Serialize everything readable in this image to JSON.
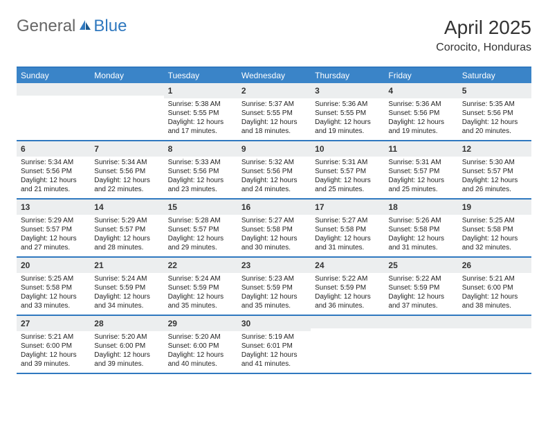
{
  "logo": {
    "general": "General",
    "blue": "Blue"
  },
  "title": "April 2025",
  "location": "Corocito, Honduras",
  "colors": {
    "accent": "#2f78bf",
    "header_bg": "#3a84c8",
    "daynum_bg": "#eceeef",
    "text": "#222222",
    "background": "#ffffff"
  },
  "daysOfWeek": [
    "Sunday",
    "Monday",
    "Tuesday",
    "Wednesday",
    "Thursday",
    "Friday",
    "Saturday"
  ],
  "layout": {
    "columns": 7,
    "rows": 5,
    "cell_font_size": 10,
    "dow_font_size": 12,
    "title_font_size": 28,
    "location_font_size": 16
  },
  "weeks": [
    [
      {
        "day": "",
        "sunrise": "",
        "sunset": "",
        "daylight": ""
      },
      {
        "day": "",
        "sunrise": "",
        "sunset": "",
        "daylight": ""
      },
      {
        "day": "1",
        "sunrise": "Sunrise: 5:38 AM",
        "sunset": "Sunset: 5:55 PM",
        "daylight": "Daylight: 12 hours and 17 minutes."
      },
      {
        "day": "2",
        "sunrise": "Sunrise: 5:37 AM",
        "sunset": "Sunset: 5:55 PM",
        "daylight": "Daylight: 12 hours and 18 minutes."
      },
      {
        "day": "3",
        "sunrise": "Sunrise: 5:36 AM",
        "sunset": "Sunset: 5:55 PM",
        "daylight": "Daylight: 12 hours and 19 minutes."
      },
      {
        "day": "4",
        "sunrise": "Sunrise: 5:36 AM",
        "sunset": "Sunset: 5:56 PM",
        "daylight": "Daylight: 12 hours and 19 minutes."
      },
      {
        "day": "5",
        "sunrise": "Sunrise: 5:35 AM",
        "sunset": "Sunset: 5:56 PM",
        "daylight": "Daylight: 12 hours and 20 minutes."
      }
    ],
    [
      {
        "day": "6",
        "sunrise": "Sunrise: 5:34 AM",
        "sunset": "Sunset: 5:56 PM",
        "daylight": "Daylight: 12 hours and 21 minutes."
      },
      {
        "day": "7",
        "sunrise": "Sunrise: 5:34 AM",
        "sunset": "Sunset: 5:56 PM",
        "daylight": "Daylight: 12 hours and 22 minutes."
      },
      {
        "day": "8",
        "sunrise": "Sunrise: 5:33 AM",
        "sunset": "Sunset: 5:56 PM",
        "daylight": "Daylight: 12 hours and 23 minutes."
      },
      {
        "day": "9",
        "sunrise": "Sunrise: 5:32 AM",
        "sunset": "Sunset: 5:56 PM",
        "daylight": "Daylight: 12 hours and 24 minutes."
      },
      {
        "day": "10",
        "sunrise": "Sunrise: 5:31 AM",
        "sunset": "Sunset: 5:57 PM",
        "daylight": "Daylight: 12 hours and 25 minutes."
      },
      {
        "day": "11",
        "sunrise": "Sunrise: 5:31 AM",
        "sunset": "Sunset: 5:57 PM",
        "daylight": "Daylight: 12 hours and 25 minutes."
      },
      {
        "day": "12",
        "sunrise": "Sunrise: 5:30 AM",
        "sunset": "Sunset: 5:57 PM",
        "daylight": "Daylight: 12 hours and 26 minutes."
      }
    ],
    [
      {
        "day": "13",
        "sunrise": "Sunrise: 5:29 AM",
        "sunset": "Sunset: 5:57 PM",
        "daylight": "Daylight: 12 hours and 27 minutes."
      },
      {
        "day": "14",
        "sunrise": "Sunrise: 5:29 AM",
        "sunset": "Sunset: 5:57 PM",
        "daylight": "Daylight: 12 hours and 28 minutes."
      },
      {
        "day": "15",
        "sunrise": "Sunrise: 5:28 AM",
        "sunset": "Sunset: 5:57 PM",
        "daylight": "Daylight: 12 hours and 29 minutes."
      },
      {
        "day": "16",
        "sunrise": "Sunrise: 5:27 AM",
        "sunset": "Sunset: 5:58 PM",
        "daylight": "Daylight: 12 hours and 30 minutes."
      },
      {
        "day": "17",
        "sunrise": "Sunrise: 5:27 AM",
        "sunset": "Sunset: 5:58 PM",
        "daylight": "Daylight: 12 hours and 31 minutes."
      },
      {
        "day": "18",
        "sunrise": "Sunrise: 5:26 AM",
        "sunset": "Sunset: 5:58 PM",
        "daylight": "Daylight: 12 hours and 31 minutes."
      },
      {
        "day": "19",
        "sunrise": "Sunrise: 5:25 AM",
        "sunset": "Sunset: 5:58 PM",
        "daylight": "Daylight: 12 hours and 32 minutes."
      }
    ],
    [
      {
        "day": "20",
        "sunrise": "Sunrise: 5:25 AM",
        "sunset": "Sunset: 5:58 PM",
        "daylight": "Daylight: 12 hours and 33 minutes."
      },
      {
        "day": "21",
        "sunrise": "Sunrise: 5:24 AM",
        "sunset": "Sunset: 5:59 PM",
        "daylight": "Daylight: 12 hours and 34 minutes."
      },
      {
        "day": "22",
        "sunrise": "Sunrise: 5:24 AM",
        "sunset": "Sunset: 5:59 PM",
        "daylight": "Daylight: 12 hours and 35 minutes."
      },
      {
        "day": "23",
        "sunrise": "Sunrise: 5:23 AM",
        "sunset": "Sunset: 5:59 PM",
        "daylight": "Daylight: 12 hours and 35 minutes."
      },
      {
        "day": "24",
        "sunrise": "Sunrise: 5:22 AM",
        "sunset": "Sunset: 5:59 PM",
        "daylight": "Daylight: 12 hours and 36 minutes."
      },
      {
        "day": "25",
        "sunrise": "Sunrise: 5:22 AM",
        "sunset": "Sunset: 5:59 PM",
        "daylight": "Daylight: 12 hours and 37 minutes."
      },
      {
        "day": "26",
        "sunrise": "Sunrise: 5:21 AM",
        "sunset": "Sunset: 6:00 PM",
        "daylight": "Daylight: 12 hours and 38 minutes."
      }
    ],
    [
      {
        "day": "27",
        "sunrise": "Sunrise: 5:21 AM",
        "sunset": "Sunset: 6:00 PM",
        "daylight": "Daylight: 12 hours and 39 minutes."
      },
      {
        "day": "28",
        "sunrise": "Sunrise: 5:20 AM",
        "sunset": "Sunset: 6:00 PM",
        "daylight": "Daylight: 12 hours and 39 minutes."
      },
      {
        "day": "29",
        "sunrise": "Sunrise: 5:20 AM",
        "sunset": "Sunset: 6:00 PM",
        "daylight": "Daylight: 12 hours and 40 minutes."
      },
      {
        "day": "30",
        "sunrise": "Sunrise: 5:19 AM",
        "sunset": "Sunset: 6:01 PM",
        "daylight": "Daylight: 12 hours and 41 minutes."
      },
      {
        "day": "",
        "sunrise": "",
        "sunset": "",
        "daylight": ""
      },
      {
        "day": "",
        "sunrise": "",
        "sunset": "",
        "daylight": ""
      },
      {
        "day": "",
        "sunrise": "",
        "sunset": "",
        "daylight": ""
      }
    ]
  ]
}
